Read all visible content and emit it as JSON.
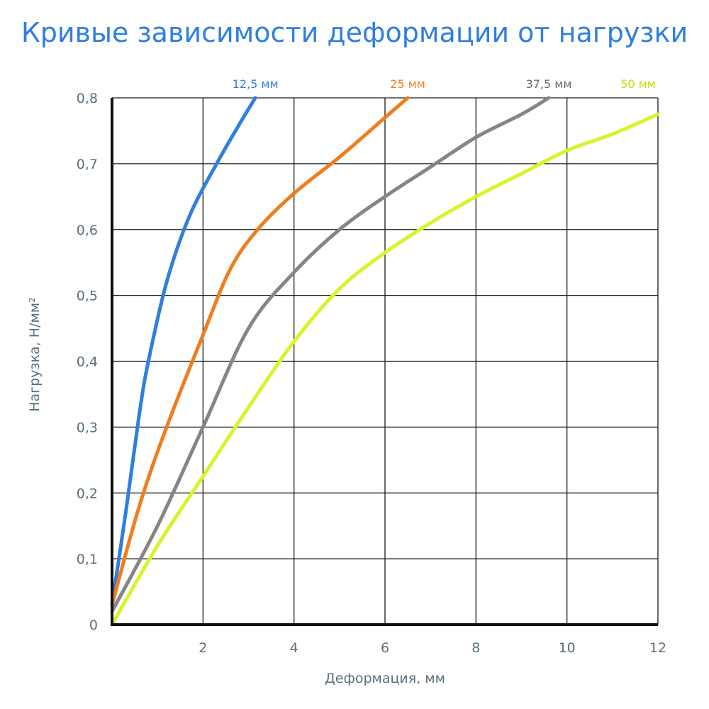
{
  "chart_data": {
    "type": "line",
    "title": "Кривые зависимости деформации от нагрузки",
    "xlabel": "Деформация, мм",
    "ylabel": "Нагрузка, Н/мм²",
    "xlim": [
      0,
      12
    ],
    "ylim": [
      0,
      0.8
    ],
    "grid": true,
    "x_ticks": [
      {
        "value": 2,
        "label": "2"
      },
      {
        "value": 4,
        "label": "4"
      },
      {
        "value": 6,
        "label": "6"
      },
      {
        "value": 8,
        "label": "8"
      },
      {
        "value": 10,
        "label": "10"
      },
      {
        "value": 12,
        "label": "12"
      }
    ],
    "y_ticks": [
      {
        "value": 0,
        "label": "0"
      },
      {
        "value": 0.1,
        "label": "0,1"
      },
      {
        "value": 0.2,
        "label": "0,2"
      },
      {
        "value": 0.3,
        "label": "0,3"
      },
      {
        "value": 0.4,
        "label": "0,4"
      },
      {
        "value": 0.5,
        "label": "0,5"
      },
      {
        "value": 0.6,
        "label": "0,6"
      },
      {
        "value": 0.7,
        "label": "0,7"
      },
      {
        "value": 0.8,
        "label": "0,8"
      }
    ],
    "series": [
      {
        "name": "12,5 мм",
        "color": "#2f7fde",
        "label_color": "#2f7fde",
        "points": [
          [
            0,
            0.03
          ],
          [
            0.3,
            0.17
          ],
          [
            0.6,
            0.32
          ],
          [
            0.8,
            0.4
          ],
          [
            1.2,
            0.52
          ],
          [
            1.7,
            0.62
          ],
          [
            2.3,
            0.7
          ],
          [
            2.8,
            0.76
          ],
          [
            3.15,
            0.8
          ]
        ]
      },
      {
        "name": "25 мм",
        "color": "#f07d1d",
        "label_color": "#f07d1d",
        "points": [
          [
            0,
            0.03
          ],
          [
            0.6,
            0.18
          ],
          [
            1.2,
            0.3
          ],
          [
            2,
            0.44
          ],
          [
            2.6,
            0.54
          ],
          [
            3.2,
            0.6
          ],
          [
            4,
            0.655
          ],
          [
            5,
            0.71
          ],
          [
            6,
            0.77
          ],
          [
            6.5,
            0.8
          ]
        ]
      },
      {
        "name": "37,5 мм",
        "color": "#858585",
        "label_color": "#5e6d78",
        "points": [
          [
            0,
            0.02
          ],
          [
            1,
            0.15
          ],
          [
            2,
            0.3
          ],
          [
            3,
            0.45
          ],
          [
            4,
            0.535
          ],
          [
            5,
            0.6
          ],
          [
            6,
            0.65
          ],
          [
            7,
            0.695
          ],
          [
            8,
            0.74
          ],
          [
            9,
            0.775
          ],
          [
            9.6,
            0.8
          ]
        ]
      },
      {
        "name": "50 мм",
        "color": "#d9f22a",
        "label_color": "#c4e000",
        "points": [
          [
            0,
            0
          ],
          [
            1,
            0.12
          ],
          [
            2,
            0.225
          ],
          [
            3,
            0.33
          ],
          [
            4,
            0.43
          ],
          [
            5,
            0.51
          ],
          [
            6,
            0.565
          ],
          [
            7,
            0.61
          ],
          [
            8,
            0.65
          ],
          [
            9,
            0.685
          ],
          [
            10,
            0.72
          ],
          [
            11,
            0.745
          ],
          [
            12,
            0.775
          ]
        ]
      }
    ]
  }
}
